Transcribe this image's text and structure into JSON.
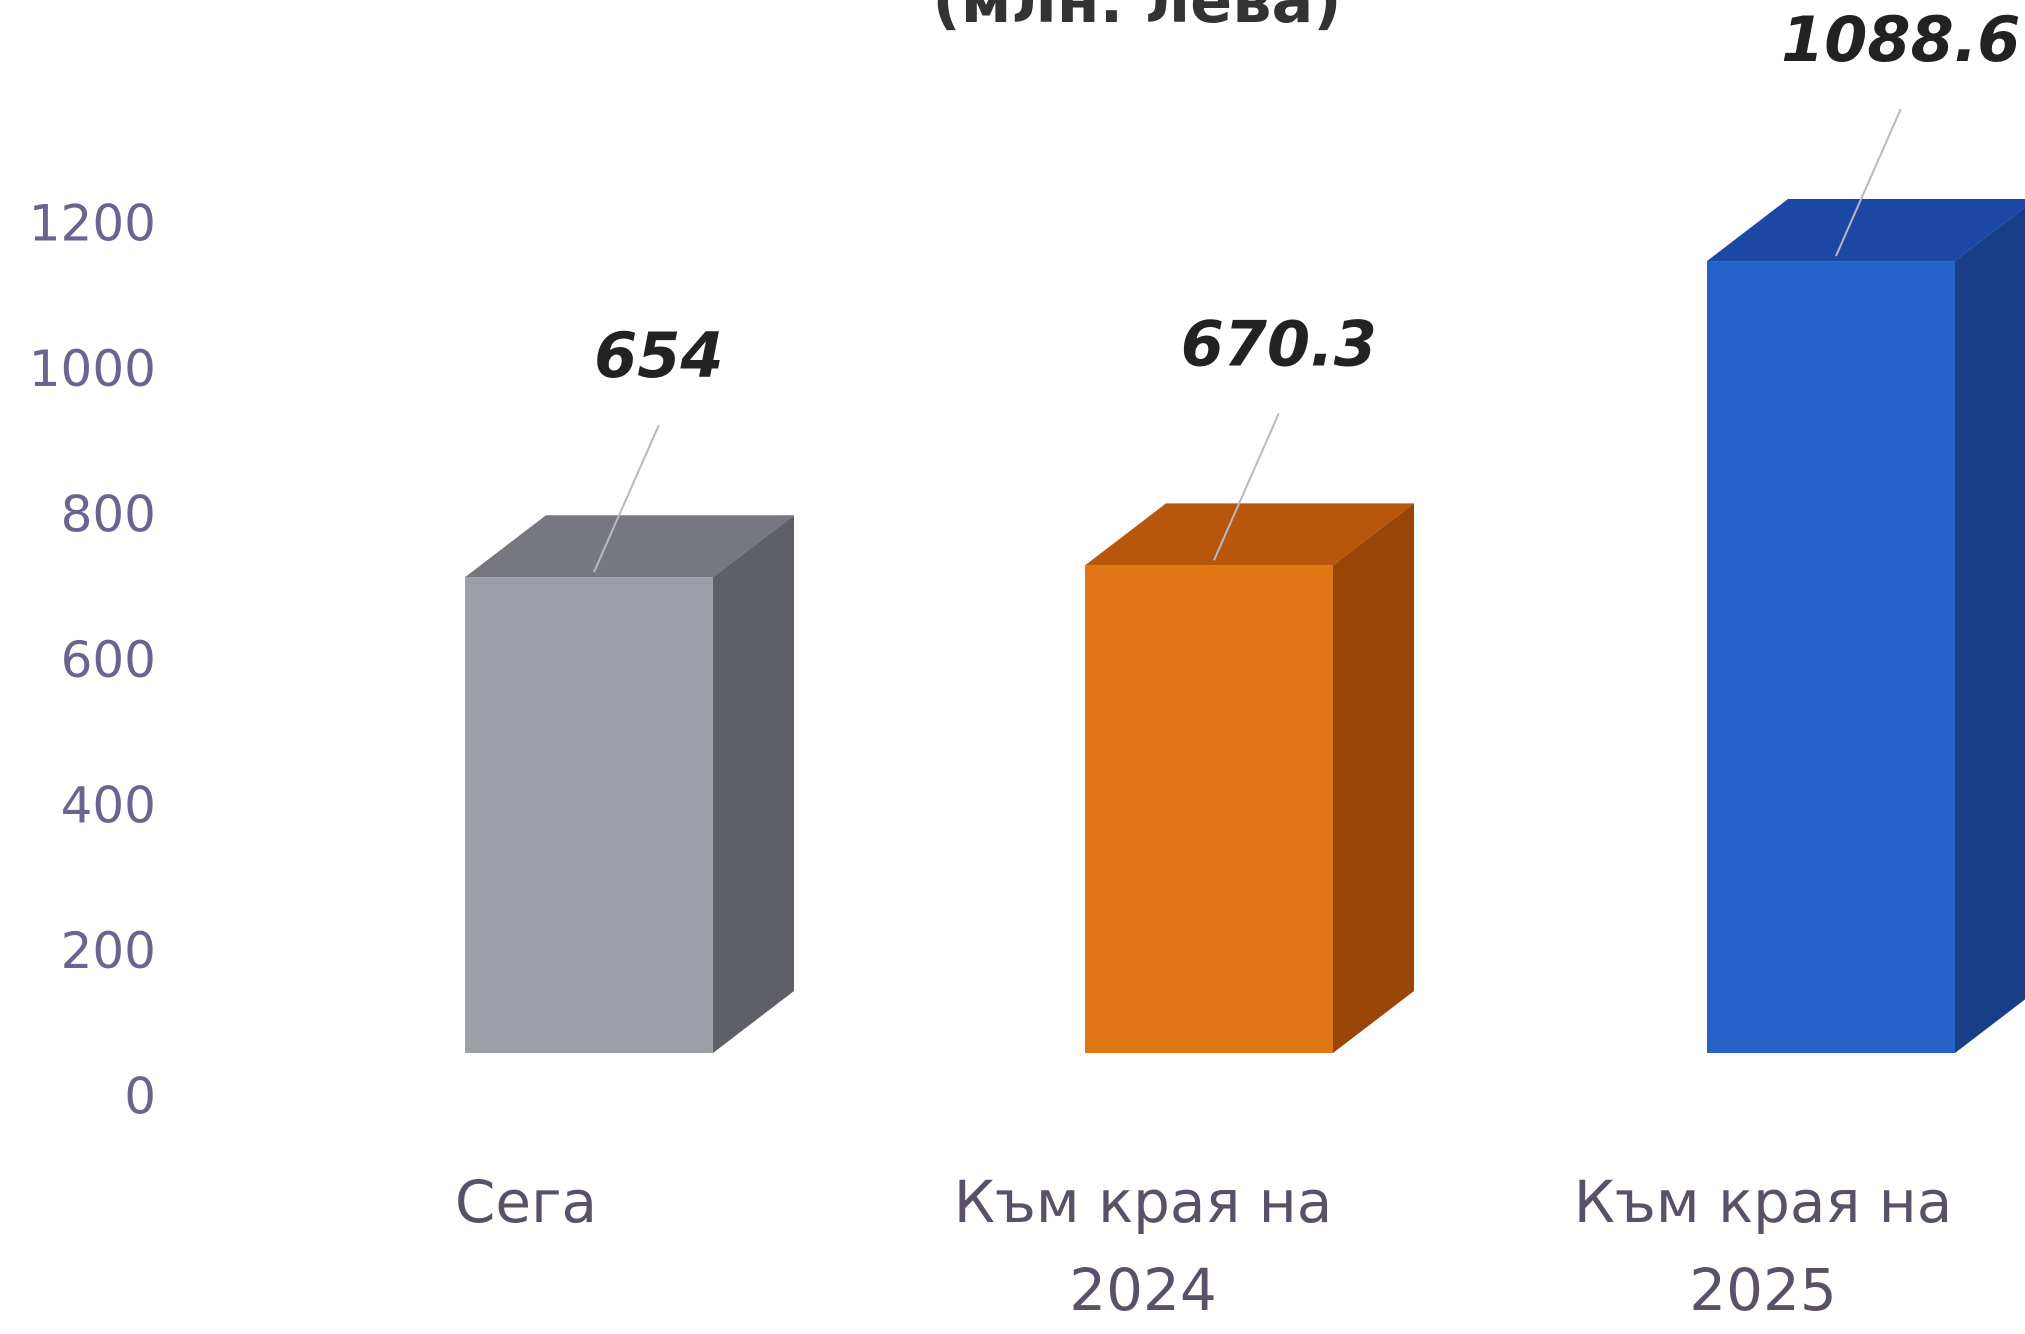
{
  "chart_data": {
    "type": "bar3d",
    "title": "(млн. лева)",
    "categories": [
      "Сега",
      "Към края на 2024",
      "Към края на 2025"
    ],
    "values": [
      654,
      670.3,
      1088.6
    ],
    "colors": [
      [
        "#9c9ea8",
        "#5f6067",
        "#77787f"
      ],
      [
        "#e07516",
        "#9a4508",
        "#b8560c"
      ],
      [
        "#2563c8",
        "#173e86",
        "#1c47a2"
      ]
    ],
    "ylim": [
      0,
      1200
    ],
    "yticks": [
      0,
      200,
      400,
      600,
      800,
      1000,
      1200
    ],
    "grid": false
  }
}
